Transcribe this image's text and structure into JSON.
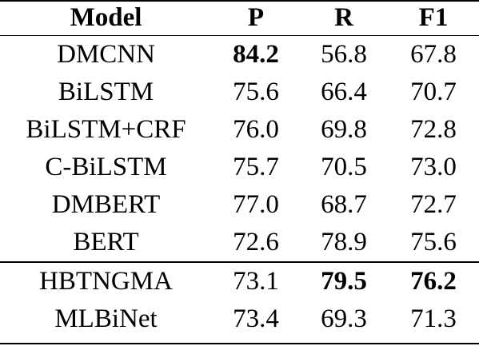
{
  "table": {
    "headers": {
      "model": "Model",
      "p": "P",
      "r": "R",
      "f1": "F1"
    },
    "rows": [
      {
        "model": "DMCNN",
        "p": "84.2",
        "r": "56.8",
        "f1": "67.8",
        "bold": [
          "p"
        ]
      },
      {
        "model": "BiLSTM",
        "p": "75.6",
        "r": "66.4",
        "f1": "70.7",
        "bold": []
      },
      {
        "model": "BiLSTM+CRF",
        "p": "76.0",
        "r": "69.8",
        "f1": "72.8",
        "bold": []
      },
      {
        "model": "C-BiLSTM",
        "p": "75.7",
        "r": "70.5",
        "f1": "73.0",
        "bold": []
      },
      {
        "model": "DMBERT",
        "p": "77.0",
        "r": "68.7",
        "f1": "72.7",
        "bold": []
      },
      {
        "model": "BERT",
        "p": "72.6",
        "r": "78.9",
        "f1": "75.6",
        "bold": []
      },
      {
        "model": "HBTNGMA",
        "p": "73.1",
        "r": "79.5",
        "f1": "76.2",
        "bold": [
          "r",
          "f1"
        ]
      },
      {
        "model": "MLBiNet",
        "p": "73.4",
        "r": "69.3",
        "f1": "71.3",
        "bold": []
      }
    ]
  }
}
